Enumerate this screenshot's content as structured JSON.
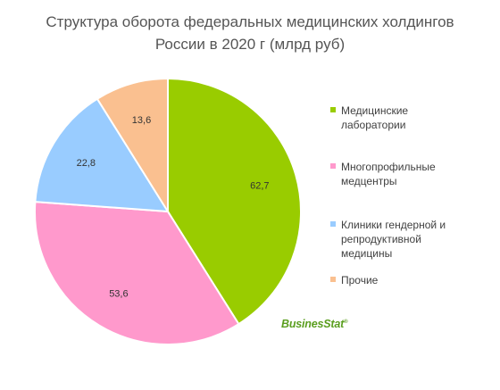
{
  "chart_data": {
    "type": "pie",
    "title_lines": [
      "Структура оборота федеральных медицинских холдингов",
      "России в 2020 г (млрд руб)"
    ],
    "series": [
      {
        "name": "Медицинские\nлаборатории",
        "value": 62.7,
        "label": "62,7",
        "color": "#99cc00"
      },
      {
        "name": "Многопрофильные\nмедцентры",
        "value": 53.6,
        "label": "53,6",
        "color": "#ff99cc"
      },
      {
        "name": "Клиники гендерной и\nрепродуктивной\nмедицины",
        "value": 22.8,
        "label": "22,8",
        "color": "#99ccff"
      },
      {
        "name": "Прочие",
        "value": 13.6,
        "label": "13,6",
        "color": "#fac090"
      }
    ],
    "legend_position": "right",
    "start_angle_deg": 0,
    "direction": "clockwise"
  },
  "watermark": {
    "part1": "Busines",
    "part2": "Stat",
    "mark": "®"
  }
}
